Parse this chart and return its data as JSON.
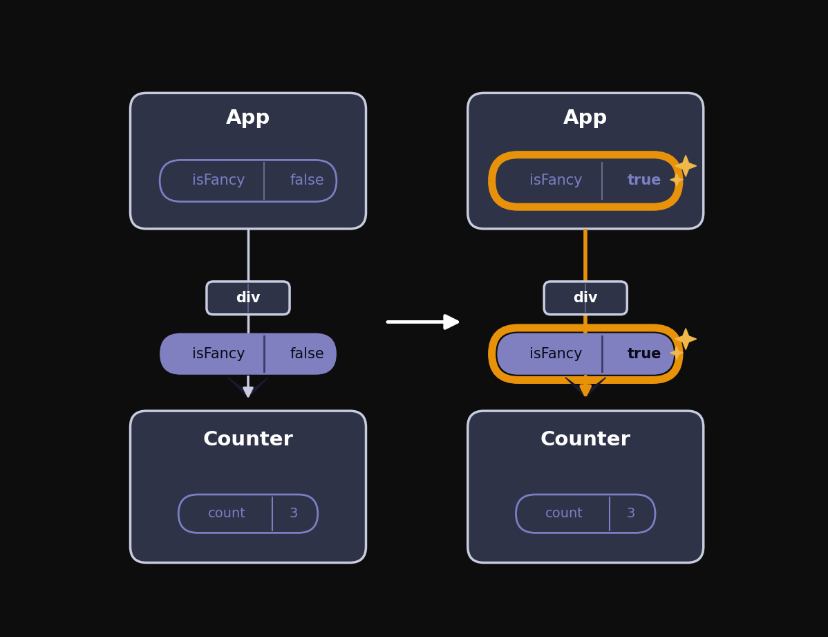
{
  "bg_color": "#0d0d0d",
  "panel_bg": "#2e3348",
  "panel_border": "#c8ccde",
  "pill_border_purple": "#7b7fc4",
  "pill_bg_prop": "#8080c0",
  "highlight_color": "#e8920a",
  "highlight_color_inner": "#c47a08",
  "text_white": "#ffffff",
  "text_purple": "#7b7fc4",
  "text_dark": "#0a0a1a",
  "sparkle_color": "#f0b84a",
  "div_line_color": "#6a6a8a",
  "wing_color": "#1a1a30",
  "left": {
    "app_title": "App",
    "state_label": "isFancy",
    "state_value": "false",
    "div_label": "div",
    "prop_label": "isFancy",
    "prop_value": "false",
    "counter_label": "Counter",
    "count_label": "count",
    "count_value": "3"
  },
  "right": {
    "app_title": "App",
    "state_label": "isFancy",
    "state_value": "true",
    "div_label": "div",
    "prop_label": "isFancy",
    "prop_value": "true",
    "counter_label": "Counter",
    "count_label": "count",
    "count_value": "3"
  }
}
